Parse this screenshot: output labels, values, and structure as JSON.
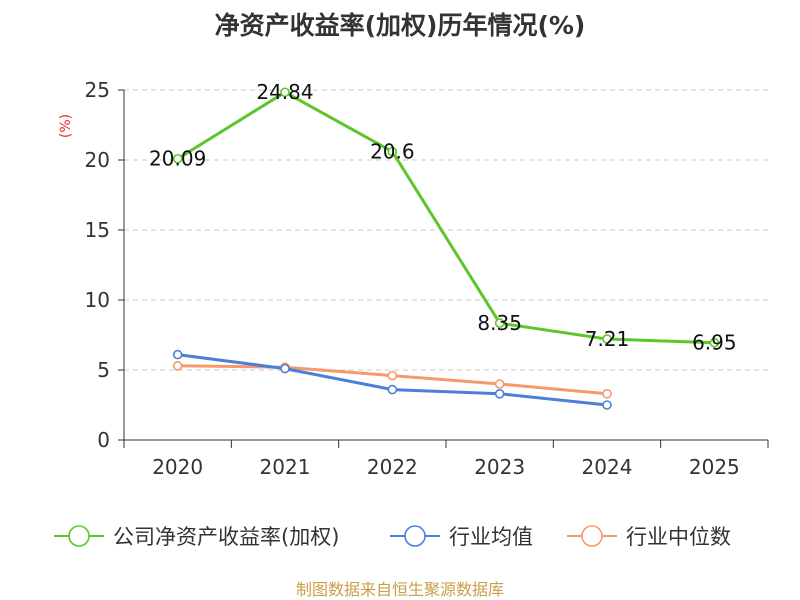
{
  "chart_data": {
    "type": "line",
    "title": "净资产收益率(加权)历年情况(%)",
    "ylabel": "(%)",
    "xlabel": "",
    "ylim": [
      0,
      25
    ],
    "yticks": [
      0,
      5,
      10,
      15,
      20,
      25
    ],
    "categories": [
      "2020",
      "2021",
      "2022",
      "2023",
      "2024",
      "2025"
    ],
    "grid": true,
    "legend_position": "bottom",
    "series": [
      {
        "name": "公司净资产收益率(加权)",
        "color": "#5cc62a",
        "values": [
          20.09,
          24.84,
          20.6,
          8.35,
          7.21,
          6.95
        ],
        "labels": [
          "20.09",
          "24.84",
          "20.6",
          "8.35",
          "7.21",
          "6.95"
        ]
      },
      {
        "name": "行业均值",
        "color": "#4d7fd8",
        "values": [
          6.1,
          5.1,
          3.6,
          3.3,
          2.5,
          null
        ]
      },
      {
        "name": "行业中位数",
        "color": "#f59a6c",
        "values": [
          5.3,
          5.2,
          4.6,
          4.0,
          3.3,
          null
        ]
      }
    ]
  },
  "footer": {
    "source": "制图数据来自恒生聚源数据库"
  }
}
